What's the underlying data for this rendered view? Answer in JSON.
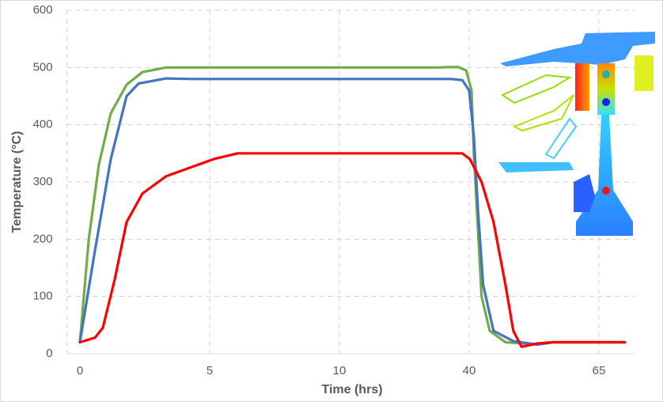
{
  "chart_data": {
    "type": "line",
    "x_label": "Time (hrs)",
    "y_label": "Temperature (°C)",
    "xlim": [
      -0.5,
      72
    ],
    "xticks": [
      0,
      5,
      10,
      40,
      65
    ],
    "ylim": [
      0,
      600
    ],
    "yticks": [
      0,
      100,
      200,
      300,
      400,
      500,
      600
    ],
    "grid": true,
    "series": [
      {
        "color": "#70ad47",
        "x": [
          0,
          0.34,
          0.73,
          1.19,
          1.8,
          2.41,
          3.32,
          4.24,
          32.1,
          37.4,
          39.3,
          40.46,
          40.9,
          42.4,
          43.96,
          47.0,
          53.1,
          56.2,
          70.0
        ],
        "values": [
          20,
          200,
          330,
          420,
          470,
          492,
          500,
          500,
          500,
          501,
          495,
          460,
          350,
          100,
          40,
          20,
          16,
          20,
          20
        ]
      },
      {
        "color": "#4472c4",
        "x": [
          0,
          0.58,
          1.19,
          1.8,
          2.26,
          3.32,
          4.24,
          35.8,
          38.4,
          40.0,
          40.9,
          41.7,
          42.7,
          44.7,
          48.5,
          53.1,
          56.2,
          70.0
        ],
        "values": [
          20,
          180,
          340,
          450,
          472,
          481,
          480,
          480,
          478,
          460,
          380,
          250,
          120,
          40,
          22,
          16,
          20,
          20
        ]
      },
      {
        "color": "#ff0000",
        "x": [
          0,
          0.58,
          0.88,
          1.34,
          1.8,
          2.41,
          3.32,
          4.24,
          5.15,
          6.07,
          9.12,
          38.4,
          40.15,
          42.4,
          44.7,
          47.0,
          48.5,
          50.1,
          53.1,
          56.2,
          70.0
        ],
        "values": [
          20,
          28,
          45,
          130,
          230,
          280,
          310,
          325,
          340,
          350,
          350,
          350,
          340,
          300,
          230,
          120,
          40,
          12,
          18,
          20,
          20
        ]
      }
    ]
  }
}
